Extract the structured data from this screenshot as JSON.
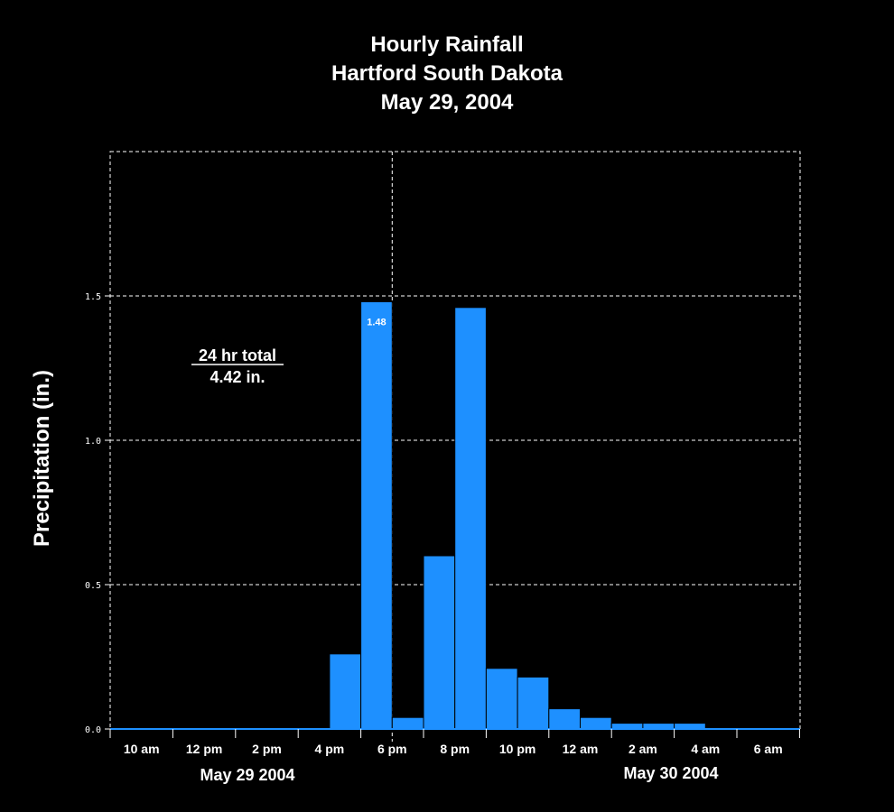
{
  "chart_data": {
    "type": "bar",
    "title": [
      "Hourly Rainfall",
      "Hartford South Dakota",
      "May 29, 2004"
    ],
    "ylabel": "Precipitation (in.)",
    "ylim": [
      0,
      2.0
    ],
    "yticks": [
      "0.0",
      "0.5",
      "1.0",
      "1.5"
    ],
    "x_tick_labels": [
      "10 am",
      "12 pm",
      "2 pm",
      "4 pm",
      "6 pm",
      "8 pm",
      "10 pm",
      "12 am",
      "2 am",
      "4 am",
      "6 am"
    ],
    "date_labels": [
      "May 29 2004",
      "May 30 2004"
    ],
    "grid": true,
    "bar_color": "#1e90ff",
    "background": "#000000",
    "hours": [
      "10 am",
      "11 am",
      "12 pm",
      "1 pm",
      "2 pm",
      "3 pm",
      "4 pm",
      "5 pm",
      "6 pm",
      "7 pm",
      "8 pm",
      "9 pm",
      "10 pm",
      "11 pm",
      "12 am",
      "1 am",
      "2 am",
      "3 am",
      "4 am",
      "5 am",
      "6 am",
      "7 am"
    ],
    "values": [
      0,
      0,
      0,
      0,
      0,
      0,
      0,
      0.26,
      1.48,
      0.04,
      0.6,
      1.46,
      0.21,
      0.18,
      0.07,
      0.04,
      0.02,
      0.02,
      0.02,
      0,
      0,
      0
    ],
    "annotations": {
      "bar_label": {
        "hour": "6 pm",
        "text": "1.48"
      },
      "total_label": "24 hr total",
      "total_value": "4.42 in."
    }
  }
}
